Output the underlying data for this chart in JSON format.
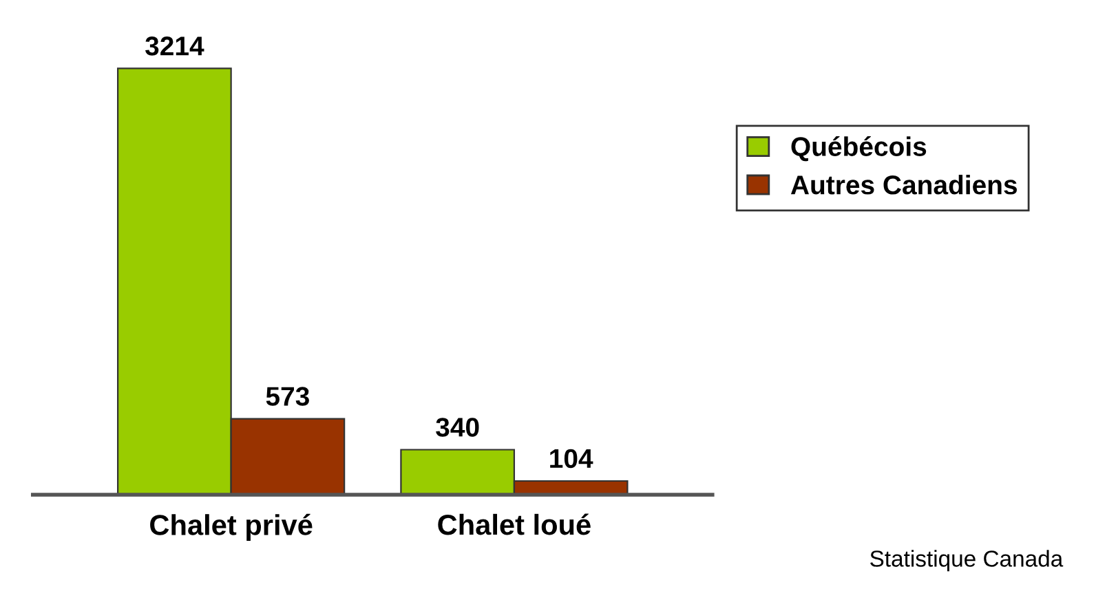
{
  "chart_data": {
    "type": "bar",
    "categories": [
      "Chalet privé",
      "Chalet loué"
    ],
    "series": [
      {
        "name": "Québécois",
        "color": "#99cc00",
        "values": [
          3214,
          340
        ]
      },
      {
        "name": "Autres Canadiens",
        "color": "#993300",
        "values": [
          573,
          104
        ]
      }
    ],
    "data_labels": true,
    "legend": "top right",
    "grid": false,
    "annotations": [
      "Statistique Canada"
    ]
  }
}
